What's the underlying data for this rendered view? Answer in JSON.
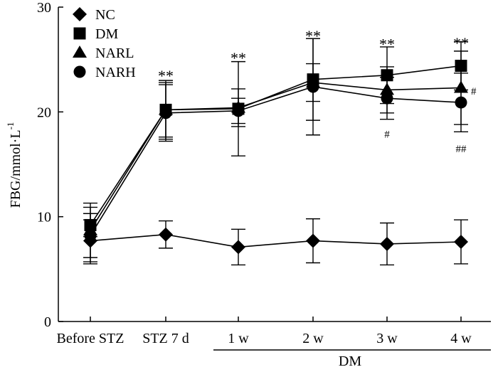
{
  "chart_data": {
    "type": "line",
    "title": "",
    "xlabel": "",
    "ylabel_main": "FBG/mmol·L",
    "ylabel_sup": "-1",
    "categories": [
      "Before STZ",
      "STZ 7 d",
      "1 w",
      "2 w",
      "3 w",
      "4 w"
    ],
    "group_label": "DM",
    "ylim": [
      0,
      30
    ],
    "yticks": [
      0,
      10,
      20,
      30
    ],
    "legend_position": "top-left",
    "series": [
      {
        "name": "NC",
        "marker": "diamond",
        "values": [
          7.7,
          8.3,
          7.1,
          7.7,
          7.4,
          7.6
        ],
        "err": [
          2.0,
          1.3,
          1.7,
          2.1,
          2.0,
          2.1
        ]
      },
      {
        "name": "DM",
        "marker": "square",
        "values": [
          9.2,
          20.2,
          20.3,
          23.1,
          23.5,
          24.4
        ],
        "err": [
          1.1,
          2.8,
          4.5,
          3.9,
          2.7,
          2.3
        ]
      },
      {
        "name": "NARL",
        "marker": "triangle",
        "values": [
          8.7,
          20.2,
          20.4,
          22.8,
          22.1,
          22.3
        ],
        "err": [
          2.6,
          2.6,
          1.8,
          1.8,
          2.2,
          3.5
        ]
      },
      {
        "name": "NARH",
        "marker": "circle",
        "values": [
          8.2,
          19.9,
          20.1,
          22.4,
          21.3,
          20.9
        ],
        "err": [
          2.7,
          2.7,
          1.2,
          4.6,
          2.0,
          2.8
        ]
      }
    ],
    "annotations": [
      {
        "text": "**",
        "category_index": 1,
        "y": 23.9
      },
      {
        "text": "**",
        "category_index": 2,
        "y": 25.6
      },
      {
        "text": "**",
        "category_index": 3,
        "y": 27.7
      },
      {
        "text": "**",
        "category_index": 4,
        "y": 26.9
      },
      {
        "text": "**",
        "category_index": 5,
        "y": 27.0
      },
      {
        "text": "#",
        "category_index": 4,
        "y": 17.9
      },
      {
        "text": "#",
        "category_index": 5,
        "y": 22.0,
        "side": "right"
      },
      {
        "text": "##",
        "category_index": 5,
        "y": 16.5
      }
    ]
  }
}
